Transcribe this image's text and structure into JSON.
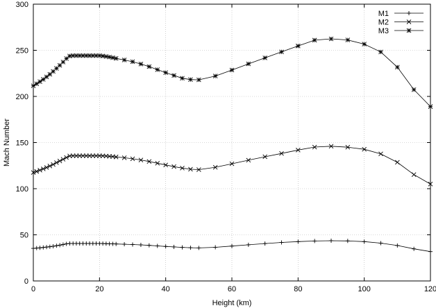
{
  "chart_data": {
    "type": "line",
    "title": "",
    "xlabel": "Height (km)",
    "ylabel": "Mach Number",
    "xlim": [
      0,
      120
    ],
    "ylim": [
      0,
      300
    ],
    "x_ticks": [
      "0",
      "20",
      "40",
      "60",
      "80",
      "100",
      "120"
    ],
    "y_ticks": [
      "0",
      "50",
      "100",
      "150",
      "200",
      "250",
      "300"
    ],
    "grid": true,
    "legend_position": "top-right",
    "series": [
      {
        "name": "M1",
        "marker": "plus",
        "x": [
          0,
          1,
          2,
          3,
          4,
          5,
          6,
          7,
          8,
          9,
          10,
          11,
          12,
          13,
          14,
          15,
          16,
          17,
          18,
          19,
          20,
          21,
          22,
          23,
          24,
          25,
          27.5,
          30,
          32.5,
          35,
          37.5,
          40,
          42.5,
          45,
          47.5,
          50,
          55,
          60,
          65,
          70,
          75,
          80,
          85,
          90,
          95,
          100,
          105,
          110,
          115,
          120
        ],
        "values": [
          35.3,
          35.6,
          35.9,
          36.3,
          36.7,
          37.1,
          37.6,
          38.2,
          38.8,
          39.5,
          40.2,
          40.6,
          40.6,
          40.6,
          40.6,
          40.6,
          40.6,
          40.6,
          40.6,
          40.6,
          40.6,
          40.5,
          40.4,
          40.3,
          40.2,
          40.1,
          39.8,
          39.5,
          39.1,
          38.6,
          38.0,
          37.4,
          36.9,
          36.4,
          36.0,
          35.8,
          36.5,
          37.8,
          39.2,
          40.5,
          41.7,
          42.6,
          43.3,
          43.6,
          43.4,
          42.6,
          41.0,
          38.4,
          34.8,
          31.8
        ]
      },
      {
        "name": "M2",
        "marker": "cross",
        "x": [
          0,
          1,
          2,
          3,
          4,
          5,
          6,
          7,
          8,
          9,
          10,
          11,
          12,
          13,
          14,
          15,
          16,
          17,
          18,
          19,
          20,
          21,
          22,
          23,
          24,
          25,
          27.5,
          30,
          32.5,
          35,
          37.5,
          40,
          42.5,
          45,
          47.5,
          50,
          55,
          60,
          65,
          70,
          75,
          80,
          85,
          90,
          95,
          100,
          105,
          110,
          115,
          120
        ],
        "values": [
          117.5,
          118.7,
          120.1,
          121.5,
          123.0,
          124.6,
          126.3,
          128.2,
          130.0,
          131.9,
          133.8,
          135.5,
          135.7,
          135.7,
          135.7,
          135.7,
          135.7,
          135.7,
          135.7,
          135.7,
          135.7,
          135.6,
          135.4,
          135.1,
          134.8,
          134.4,
          133.5,
          132.4,
          131.1,
          129.5,
          127.6,
          125.7,
          123.9,
          122.3,
          121.1,
          120.6,
          123.2,
          127.0,
          130.9,
          134.6,
          138.2,
          141.9,
          145.1,
          146.0,
          145.0,
          142.7,
          137.7,
          128.6,
          115.3,
          105.0
        ]
      },
      {
        "name": "M3",
        "marker": "star",
        "x": [
          0,
          1,
          2,
          3,
          4,
          5,
          6,
          7,
          8,
          9,
          10,
          11,
          12,
          13,
          14,
          15,
          16,
          17,
          18,
          19,
          20,
          21,
          22,
          23,
          24,
          25,
          27.5,
          30,
          32.5,
          35,
          37.5,
          40,
          42.5,
          45,
          47.5,
          50,
          55,
          60,
          65,
          70,
          75,
          80,
          85,
          90,
          95,
          100,
          105,
          110,
          115,
          120
        ],
        "values": [
          211.5,
          213.7,
          216.0,
          218.5,
          221.2,
          224.0,
          227.1,
          230.4,
          233.7,
          237.3,
          241.0,
          243.8,
          244.2,
          244.2,
          244.2,
          244.2,
          244.2,
          244.2,
          244.2,
          244.2,
          244.2,
          243.8,
          243.3,
          242.7,
          242.0,
          241.2,
          239.5,
          237.6,
          235.1,
          232.3,
          229.0,
          225.8,
          222.7,
          219.7,
          218.3,
          218.0,
          222.1,
          228.6,
          235.3,
          241.8,
          248.3,
          254.7,
          261.0,
          262.4,
          261.2,
          256.7,
          248.2,
          231.7,
          207.3,
          189.0
        ]
      }
    ]
  }
}
